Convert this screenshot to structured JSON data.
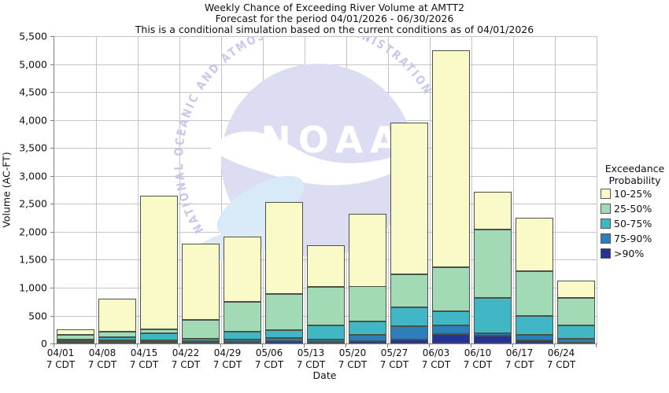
{
  "title_lines": [
    "Weekly Chance of Exceeding River Volume at AMTT2",
    "Forecast for the period 04/01/2026 - 06/30/2026",
    "This is a conditional simulation based on the current conditions as of 04/01/2026"
  ],
  "axes": {
    "y_label": "Volume (AC-FT)",
    "x_label": "Date",
    "y_ticks": [
      {
        "value": 0,
        "label": "0"
      },
      {
        "value": 500,
        "label": "500"
      },
      {
        "value": 1000,
        "label": "1,000"
      },
      {
        "value": 1500,
        "label": "1,500"
      },
      {
        "value": 2000,
        "label": "2,000"
      },
      {
        "value": 2500,
        "label": "2,500"
      },
      {
        "value": 3000,
        "label": "3,000"
      },
      {
        "value": 3500,
        "label": "3,500"
      },
      {
        "value": 4000,
        "label": "4,000"
      },
      {
        "value": 4500,
        "label": "4,500"
      },
      {
        "value": 5000,
        "label": "5,000"
      },
      {
        "value": 5500,
        "label": "5,500"
      }
    ]
  },
  "legend": {
    "title_line1": "Exceedance",
    "title_line2": "Probability",
    "items": [
      {
        "label": "10-25%",
        "color": "#FAFAC8"
      },
      {
        "label": "25-50%",
        "color": "#A1DAB4"
      },
      {
        "label": "50-75%",
        "color": "#41B6C4"
      },
      {
        "label": "75-90%",
        "color": "#2C7FB8"
      },
      {
        "label": ">90%",
        "color": "#253494"
      }
    ]
  },
  "watermark": {
    "ring_text": "NATIONAL OCEANIC AND ATMOSPHERIC ADMINISTRATION",
    "center_text": "NOAA",
    "circle_color": "#dcdcf2",
    "ring_text_color": "#c7c7ec",
    "gull_color": "#ffffff",
    "leaf_color": "#d8e9f8"
  },
  "chart_data": {
    "type": "bar",
    "stacked": true,
    "title": "Weekly Chance of Exceeding River Volume at AMTT2",
    "xlabel": "Date",
    "ylabel": "Volume (AC-FT)",
    "ylim": [
      0,
      5500
    ],
    "grid": true,
    "legend_position": "right",
    "categories": [
      "04/01",
      "04/08",
      "04/15",
      "04/22",
      "04/29",
      "05/06",
      "05/13",
      "05/20",
      "05/27",
      "06/03",
      "06/10",
      "06/17",
      "06/24"
    ],
    "tick_suffix": "7 CDT",
    "series_order": "bottom-to-top",
    "series": [
      {
        "name": ">90%",
        "color": "#253494",
        "values": [
          25,
          25,
          25,
          20,
          30,
          40,
          25,
          45,
          75,
          170,
          135,
          60,
          20
        ]
      },
      {
        "name": "75-90%",
        "color": "#2C7FB8",
        "values": [
          15,
          25,
          30,
          20,
          35,
          55,
          40,
          105,
          235,
          150,
          55,
          90,
          70
        ]
      },
      {
        "name": "50-75%",
        "color": "#41B6C4",
        "values": [
          25,
          65,
          130,
          50,
          150,
          145,
          255,
          250,
          335,
          250,
          625,
          340,
          230
        ]
      },
      {
        "name": "25-50%",
        "color": "#A1DAB4",
        "values": [
          85,
          100,
          70,
          330,
          525,
          640,
          700,
          620,
          595,
          790,
          1225,
          800,
          490
        ]
      },
      {
        "name": "10-25%",
        "color": "#FAFAC8",
        "values": [
          110,
          585,
          2395,
          1370,
          1170,
          1650,
          740,
          1300,
          2710,
          3890,
          680,
          960,
          310
        ]
      }
    ],
    "bar_totals": [
      260,
      800,
      2650,
      1790,
      1910,
      2530,
      1760,
      2320,
      3950,
      5250,
      2720,
      2250,
      1120
    ]
  }
}
